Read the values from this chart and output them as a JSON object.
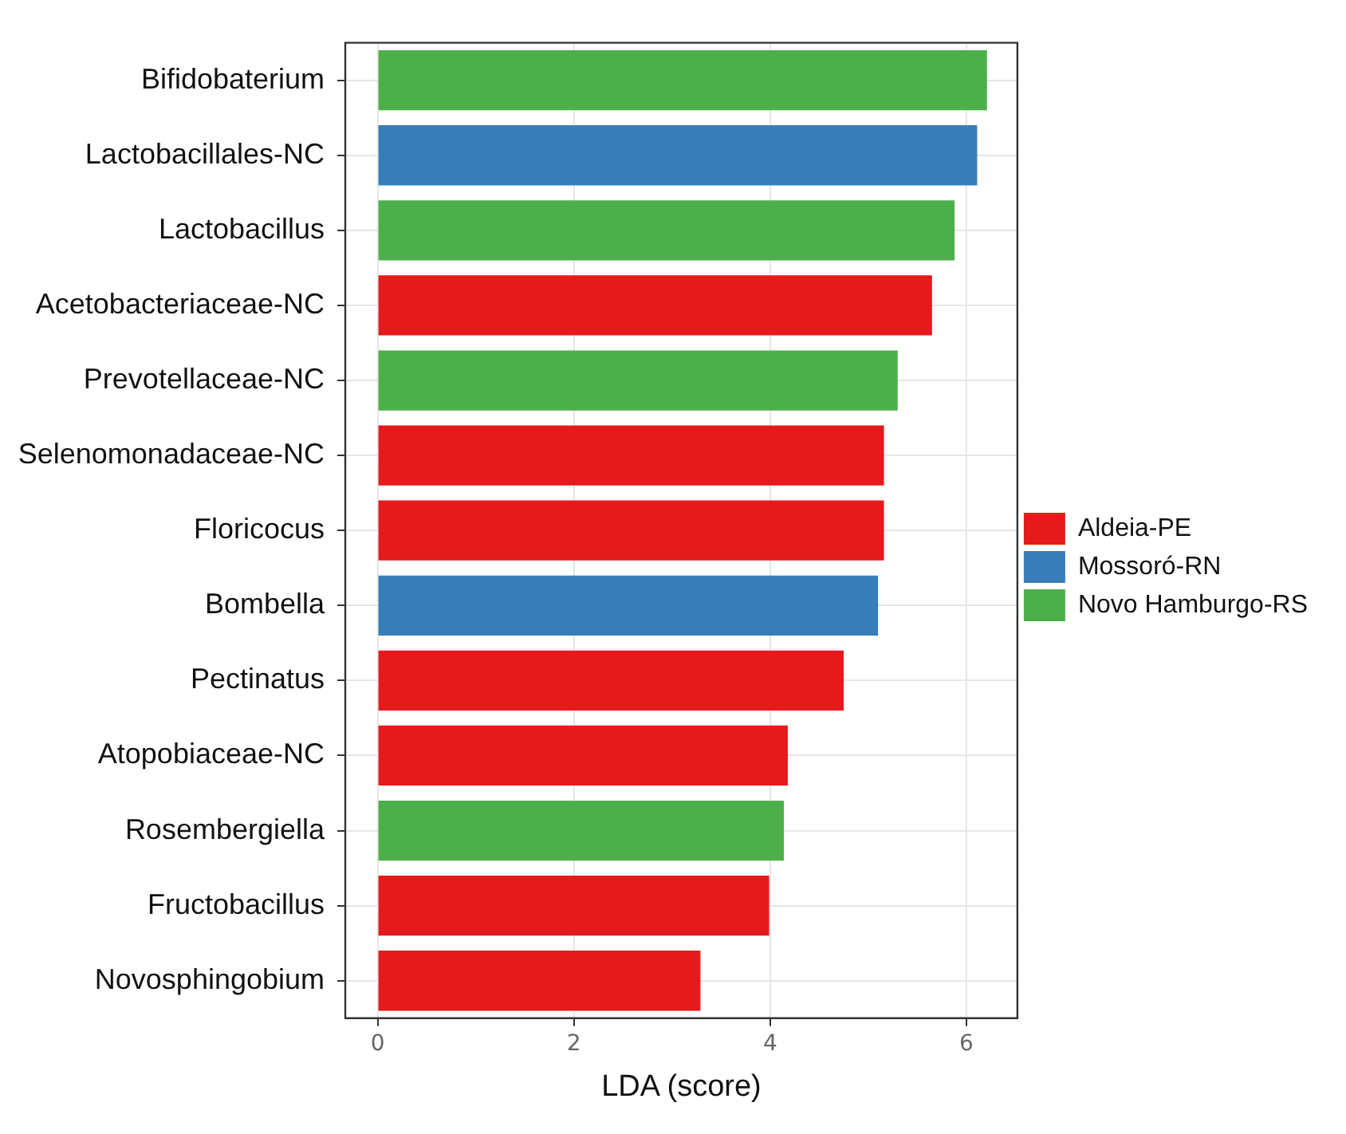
{
  "chart_data": {
    "type": "bar",
    "orientation": "horizontal",
    "stacked": true,
    "xlabel": "LDA (score)",
    "categories": [
      "Bifidobaterium",
      "Lactobacillales-NC",
      "Lactobacillus",
      "Acetobacteriaceae-NC",
      "Prevotellaceae-NC",
      "Selenomonadaceae-NC",
      "Floricocus",
      "Bombella",
      "Pectinatus",
      "Atopobiaceae-NC",
      "Rosembergiella",
      "Fructobacillus",
      "Novosphingobium"
    ],
    "series": [
      {
        "name": "Aldeia-PE",
        "color": "#e41a1c",
        "values": [
          null,
          null,
          null,
          5.65,
          null,
          5.16,
          5.16,
          null,
          4.75,
          4.18,
          null,
          3.99,
          3.29
        ]
      },
      {
        "name": "Mossoró-RN",
        "color": "#377eb8",
        "values": [
          null,
          6.11,
          null,
          null,
          null,
          null,
          null,
          5.1,
          null,
          null,
          null,
          null,
          null
        ]
      },
      {
        "name": "Novo Hamburgo-RS",
        "color": "#4daf4a",
        "values": [
          6.21,
          null,
          5.88,
          null,
          5.3,
          null,
          null,
          null,
          null,
          null,
          4.14,
          null,
          null
        ]
      }
    ],
    "xlim": [
      -0.33,
      6.52
    ],
    "xticks": [
      0,
      2,
      4,
      6
    ],
    "grid": true,
    "legend": "right"
  }
}
